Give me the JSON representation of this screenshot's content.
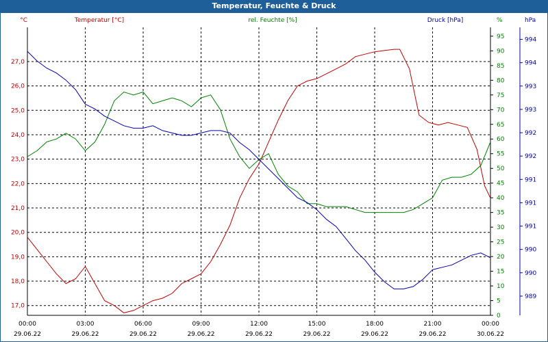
{
  "title": "Temperatur, Feuchte & Druck",
  "colors": {
    "temperature": "#c00000",
    "humidity": "#008000",
    "pressure": "#0000b0",
    "titlebar": "#1f5f99"
  },
  "chart_data": {
    "type": "line",
    "grid": true,
    "x": {
      "ticks": [
        {
          "time": "00:00",
          "date": "29.06.22",
          "hour": 0
        },
        {
          "time": "03:00",
          "date": "29.06.22",
          "hour": 3
        },
        {
          "time": "06:00",
          "date": "29.06.22",
          "hour": 6
        },
        {
          "time": "09:00",
          "date": "29.06.22",
          "hour": 9
        },
        {
          "time": "12:00",
          "date": "29.06.22",
          "hour": 12
        },
        {
          "time": "15:00",
          "date": "29.06.22",
          "hour": 15
        },
        {
          "time": "18:00",
          "date": "29.06.22",
          "hour": 18
        },
        {
          "time": "21:00",
          "date": "29.06.22",
          "hour": 21
        },
        {
          "time": "00:00",
          "date": "30.06.22",
          "hour": 24
        }
      ],
      "range": [
        0,
        24
      ]
    },
    "axes": {
      "temperature": {
        "label": "Temperatur [°C]",
        "unit": "°C",
        "range": [
          16.6,
          28.4
        ],
        "ticks": [
          "17,0",
          "18,0",
          "19,0",
          "20,0",
          "21,0",
          "22,0",
          "23,0",
          "24,0",
          "25,0",
          "26,0",
          "27,0"
        ]
      },
      "humidity": {
        "label": "rel. Feuchte [%]",
        "unit": "%",
        "range": [
          0,
          98
        ],
        "ticks": [
          "0",
          "5",
          "10",
          "15",
          "20",
          "25",
          "30",
          "35",
          "40",
          "45",
          "50",
          "55",
          "60",
          "65",
          "70",
          "75",
          "80",
          "85",
          "90",
          "95"
        ]
      },
      "pressure": {
        "label": "Druck [hPa]",
        "unit": "hPa",
        "range": [
          988.6,
          994.6
        ],
        "ticks": [
          "989",
          "990",
          "990",
          "991",
          "991",
          "991",
          "992",
          "992",
          "993",
          "993",
          "994",
          "994"
        ]
      }
    },
    "series": [
      {
        "name": "Temperatur [°C]",
        "axis": "temperature",
        "x": [
          0,
          0.5,
          1,
          1.5,
          2,
          2.5,
          3,
          3.5,
          4,
          4.5,
          5,
          5.5,
          6,
          6.5,
          7,
          7.5,
          8,
          8.5,
          9,
          9.5,
          10,
          10.5,
          11,
          11.5,
          12,
          12.5,
          13,
          13.5,
          14,
          14.5,
          15,
          15.5,
          16,
          16.5,
          17,
          17.5,
          18,
          18.5,
          19,
          19.3,
          19.8,
          20.3,
          20.8,
          21.3,
          21.8,
          22.3,
          22.8,
          23.3,
          23.7,
          24
        ],
        "y": [
          19.8,
          19.3,
          18.8,
          18.3,
          17.9,
          18.1,
          18.6,
          17.9,
          17.2,
          17.0,
          16.7,
          16.8,
          17.0,
          17.2,
          17.3,
          17.5,
          17.9,
          18.1,
          18.3,
          18.8,
          19.5,
          20.3,
          21.4,
          22.2,
          22.8,
          23.7,
          24.6,
          25.4,
          26.0,
          26.2,
          26.3,
          26.5,
          26.7,
          26.9,
          27.2,
          27.3,
          27.4,
          27.45,
          27.5,
          27.5,
          26.7,
          24.8,
          24.5,
          24.4,
          24.5,
          24.4,
          24.3,
          23.4,
          21.9,
          21.4
        ]
      },
      {
        "name": "rel. Feuchte [%]",
        "axis": "humidity",
        "x": [
          0,
          0.5,
          1,
          1.5,
          2,
          2.5,
          3,
          3.5,
          4,
          4.5,
          5,
          5.5,
          6,
          6.5,
          7,
          7.5,
          8,
          8.5,
          9,
          9.5,
          10,
          10.5,
          11,
          11.5,
          12,
          12.5,
          13,
          13.5,
          14,
          14.5,
          15,
          15.5,
          16,
          16.5,
          17,
          17.5,
          18,
          18.5,
          19,
          19.5,
          20,
          20.5,
          21,
          21.5,
          22,
          22.5,
          23,
          23.5,
          24
        ],
        "y": [
          54,
          56,
          59,
          60,
          62,
          60,
          56,
          59,
          65,
          73,
          76,
          75,
          76,
          72,
          73,
          74,
          73,
          71,
          74,
          75,
          70,
          60,
          54,
          50,
          53,
          55,
          48,
          44,
          42,
          38,
          38,
          37,
          37,
          37,
          36,
          35,
          35,
          35,
          35,
          35,
          36,
          38,
          40,
          46,
          47,
          47,
          48,
          51,
          59
        ]
      },
      {
        "name": "Druck [hPa]",
        "axis": "pressure",
        "x": [
          0,
          0.5,
          1,
          1.5,
          2,
          2.5,
          3,
          3.5,
          4,
          4.5,
          5,
          5.5,
          6,
          6.5,
          7,
          7.5,
          8,
          8.5,
          9,
          9.5,
          10,
          10.5,
          11,
          11.5,
          12,
          12.5,
          13,
          13.5,
          14,
          14.5,
          15,
          15.5,
          16,
          16.5,
          17,
          17.5,
          18,
          18.5,
          19,
          19.5,
          20,
          20.5,
          21,
          21.5,
          22,
          22.5,
          23,
          23.5,
          24
        ],
        "y": [
          994.1,
          993.9,
          993.75,
          993.65,
          993.5,
          993.3,
          993.0,
          992.9,
          992.75,
          992.65,
          992.55,
          992.5,
          992.5,
          992.55,
          992.45,
          992.4,
          992.35,
          992.35,
          992.4,
          992.45,
          992.45,
          992.4,
          992.2,
          992.05,
          991.85,
          991.65,
          991.45,
          991.25,
          991.05,
          990.95,
          990.8,
          990.6,
          990.45,
          990.2,
          989.95,
          989.75,
          989.5,
          989.3,
          989.15,
          989.15,
          989.2,
          989.35,
          989.55,
          989.6,
          989.65,
          989.75,
          989.85,
          989.9,
          989.8
        ]
      }
    ]
  }
}
